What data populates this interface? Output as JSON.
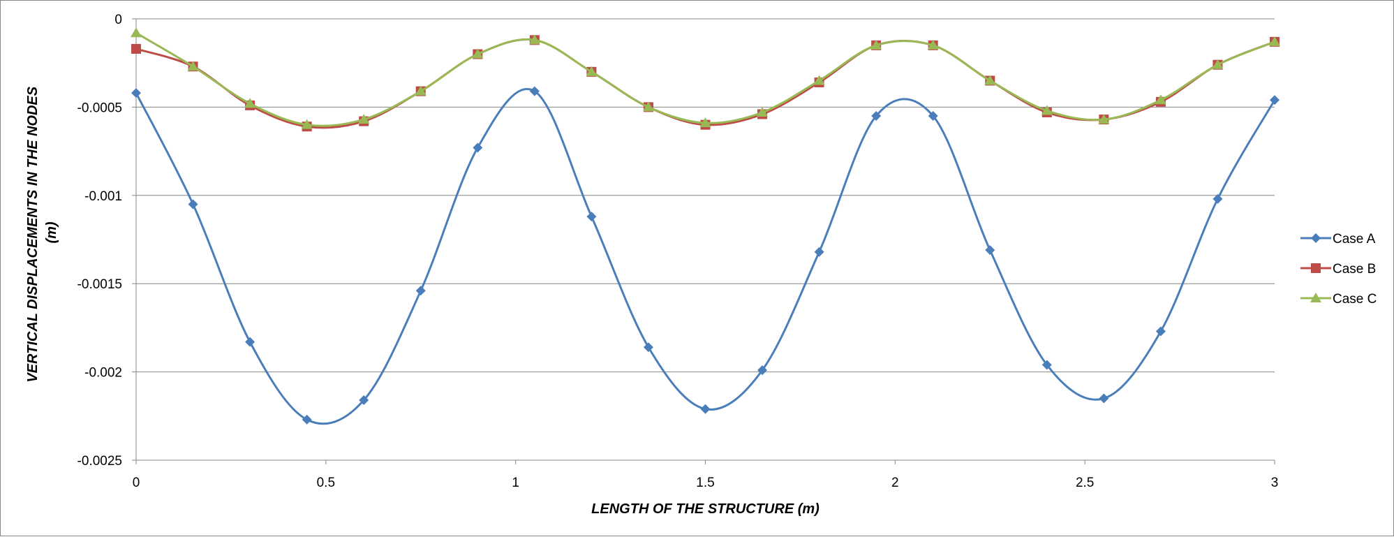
{
  "chart_data": {
    "type": "line",
    "title": "",
    "xlabel": "LENGTH OF THE STRUCTURE (m)",
    "ylabel": "VERTICAL DISPLACEMENTS IN THE NODES (m)",
    "ylabel_lines": [
      "VERTICAL DISPLACEMENTS IN THE NODES",
      "(m)"
    ],
    "xlim": [
      0,
      3
    ],
    "ylim": [
      -0.0025,
      0
    ],
    "x_ticks": [
      0,
      0.5,
      1,
      1.5,
      2,
      2.5,
      3
    ],
    "x_tick_labels": [
      "0",
      "0.5",
      "1",
      "1.5",
      "2",
      "2.5",
      "3"
    ],
    "y_ticks": [
      0,
      -0.0005,
      -0.001,
      -0.0015,
      -0.002,
      -0.0025
    ],
    "y_tick_labels": [
      "0",
      "-0.0005",
      "-0.001",
      "-0.0015",
      "-0.002",
      "-0.0025"
    ],
    "grid": "horizontal",
    "smooth": true,
    "legend_position": "right",
    "x": [
      0,
      0.15,
      0.3,
      0.45,
      0.6,
      0.75,
      0.9,
      1.05,
      1.2,
      1.35,
      1.5,
      1.65,
      1.8,
      1.95,
      2.1,
      2.25,
      2.4,
      2.55,
      2.7,
      2.85,
      3
    ],
    "series": [
      {
        "name": "Case A",
        "color": "#4a7ebb",
        "marker": "diamond",
        "values": [
          -0.00042,
          -0.00105,
          -0.00183,
          -0.00227,
          -0.00216,
          -0.00154,
          -0.00073,
          -0.00041,
          -0.00112,
          -0.00186,
          -0.00221,
          -0.00199,
          -0.00132,
          -0.00055,
          -0.00055,
          -0.00131,
          -0.00196,
          -0.00215,
          -0.00177,
          -0.00102,
          -0.00046
        ]
      },
      {
        "name": "Case B",
        "color": "#be4b48",
        "marker": "square",
        "values": [
          -0.00017,
          -0.00027,
          -0.00049,
          -0.00061,
          -0.00058,
          -0.00041,
          -0.0002,
          -0.00012,
          -0.0003,
          -0.0005,
          -0.0006,
          -0.00054,
          -0.00036,
          -0.00015,
          -0.00015,
          -0.00035,
          -0.00053,
          -0.00057,
          -0.00047,
          -0.00026,
          -0.00013
        ]
      },
      {
        "name": "Case C",
        "color": "#98b954",
        "marker": "triangle",
        "values": [
          -8e-05,
          -0.00027,
          -0.00048,
          -0.0006,
          -0.00057,
          -0.00041,
          -0.0002,
          -0.00012,
          -0.0003,
          -0.0005,
          -0.00059,
          -0.00053,
          -0.00035,
          -0.00015,
          -0.00015,
          -0.00035,
          -0.00052,
          -0.00057,
          -0.00046,
          -0.00026,
          -0.00013
        ]
      }
    ]
  }
}
